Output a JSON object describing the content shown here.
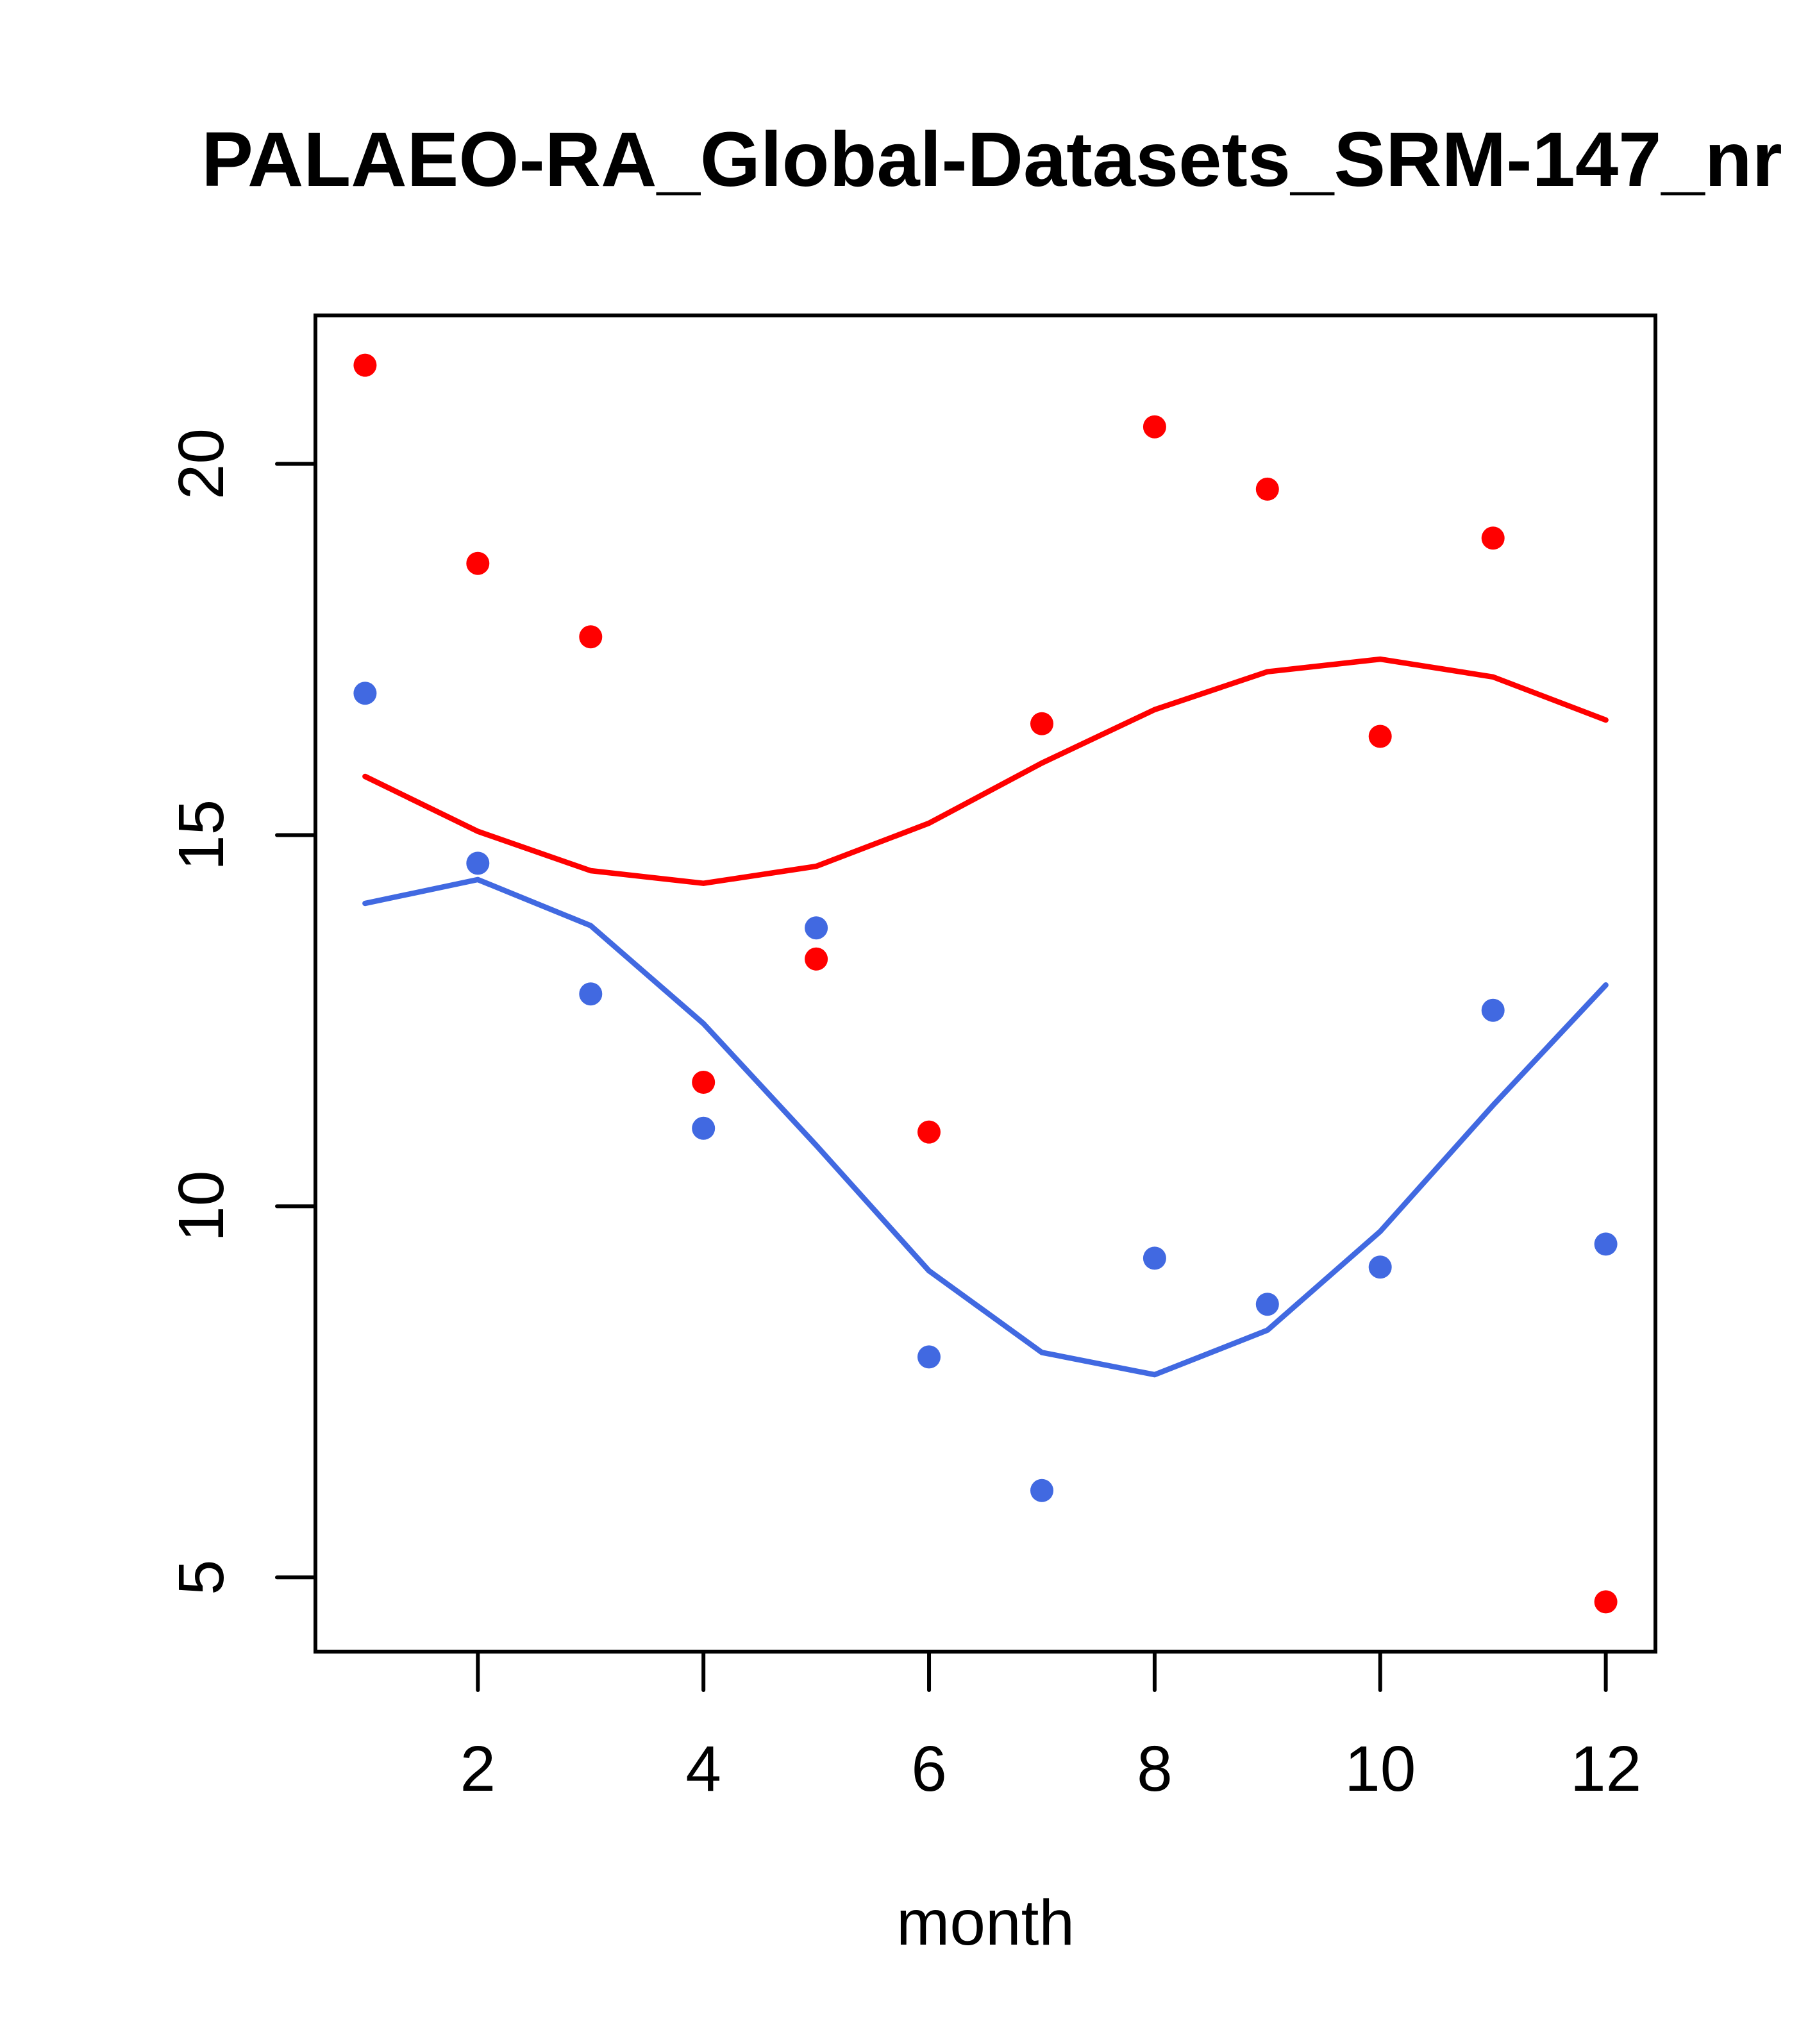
{
  "chart_data": {
    "type": "scatter",
    "title": "PALAEO-RA_Global-Datasets_SRM-147_nr",
    "xlabel": "month",
    "ylabel": "",
    "xlim": [
      0.56,
      12.44
    ],
    "ylim": [
      4.0,
      22.0
    ],
    "xticks": [
      2,
      4,
      6,
      8,
      10,
      12
    ],
    "xtick_labels": [
      "2",
      "4",
      "6",
      "8",
      "10",
      "12"
    ],
    "yticks": [
      5,
      10,
      15,
      20
    ],
    "ytick_labels": [
      "5",
      "10",
      "15",
      "20"
    ],
    "grid": false,
    "legend": "none",
    "x": [
      1,
      2,
      3,
      4,
      5,
      6,
      7,
      8,
      9,
      10,
      11,
      12
    ],
    "series": [
      {
        "name": "red points",
        "kind": "points",
        "color": "#FF0000",
        "values": [
          21.33,
          18.66,
          17.67,
          11.67,
          13.33,
          11.0,
          16.5,
          20.5,
          19.66,
          16.33,
          19.0,
          4.67
        ]
      },
      {
        "name": "red line",
        "kind": "line",
        "color": "#FF0000",
        "values": [
          15.79,
          15.05,
          14.52,
          14.35,
          14.58,
          15.16,
          15.97,
          16.69,
          17.2,
          17.37,
          17.13,
          16.55
        ]
      },
      {
        "name": "blue points",
        "kind": "points",
        "color": "#4169E1",
        "values": [
          16.91,
          14.62,
          12.86,
          11.05,
          13.75,
          7.97,
          6.17,
          9.3,
          8.68,
          9.18,
          12.64,
          9.49
        ]
      },
      {
        "name": "blue line",
        "kind": "line",
        "color": "#4169E1",
        "values": [
          14.08,
          14.4,
          13.78,
          12.46,
          10.82,
          9.13,
          8.03,
          7.73,
          8.33,
          9.66,
          11.36,
          12.98
        ]
      }
    ]
  }
}
